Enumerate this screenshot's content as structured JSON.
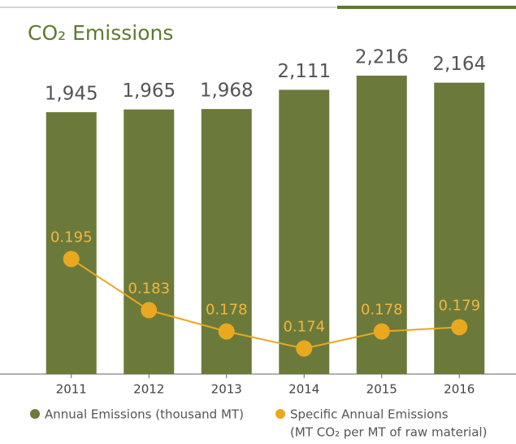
{
  "chart_data": {
    "type": "bar_line",
    "title": "CO₂ Emissions",
    "categories": [
      "2011",
      "2012",
      "2013",
      "2014",
      "2015",
      "2016"
    ],
    "series": [
      {
        "name": "Annual Emissions (thousand MT)",
        "type": "bar",
        "color": "#6b7a3a",
        "values": [
          1945,
          1965,
          1968,
          2111,
          2216,
          2164
        ],
        "value_labels": [
          "1,945",
          "1,965",
          "1,968",
          "2,111",
          "2,216",
          "2,164"
        ]
      },
      {
        "name": "Specific Annual Emissions",
        "type": "line",
        "axis": "y2",
        "color": "#e8a820",
        "values": [
          0.195,
          0.183,
          0.178,
          0.174,
          0.178,
          0.179
        ]
      }
    ],
    "y2label": "(MT CO₂ per MT of raw material)",
    "ylim": [
      0,
      2500
    ],
    "y2lim": [
      0.168,
      0.247
    ],
    "legend": "bottom-left"
  }
}
